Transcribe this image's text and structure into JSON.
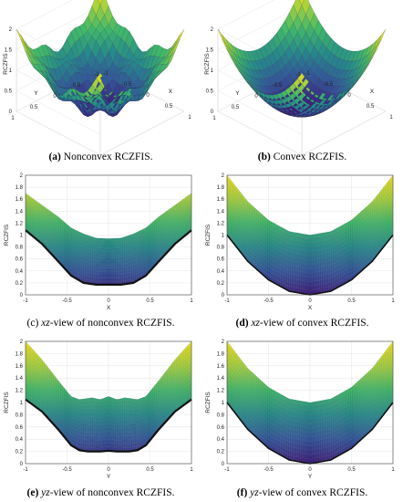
{
  "chart_data": [
    {
      "id": "a",
      "type": "surface3d",
      "caption_letter": "(a)",
      "caption_text": "Nonconvex RCZFIS.",
      "zlabel": "RCZFIS",
      "xlabel": "X",
      "ylabel": "Y",
      "zticks": [
        "0",
        "0.5",
        "1",
        "1.5",
        "2"
      ],
      "xticks": [
        "-1",
        "-0.5",
        "0",
        "0.5",
        "1"
      ],
      "yticks": [
        "1",
        "0.5",
        "0",
        "-0.5",
        "-1"
      ],
      "zlim": [
        0,
        2
      ],
      "xlim": [
        -1,
        1
      ],
      "ylim": [
        -1,
        1
      ],
      "colormap": [
        "#3e1a78",
        "#33559a",
        "#268a8c",
        "#40b86b",
        "#a6d23e",
        "#f3e11d"
      ],
      "surface": "nonconvex"
    },
    {
      "id": "b",
      "type": "surface3d",
      "caption_letter": "(b)",
      "caption_text": "Convex RCZFIS.",
      "zlabel": "RCZFIS",
      "xlabel": "X",
      "ylabel": "Y",
      "zticks": [
        "0",
        "0.5",
        "1",
        "1.5",
        "2"
      ],
      "xticks": [
        "-1",
        "-0.5",
        "0",
        "0.5",
        "1"
      ],
      "yticks": [
        "1",
        "0.5",
        "0",
        "-0.5",
        "-1"
      ],
      "zlim": [
        0,
        2
      ],
      "xlim": [
        -1,
        1
      ],
      "ylim": [
        -1,
        1
      ],
      "colormap": [
        "#3e1a78",
        "#33559a",
        "#268a8c",
        "#40b86b",
        "#a6d23e",
        "#f3e11d"
      ],
      "surface": "convex"
    },
    {
      "id": "c",
      "type": "surface_side_view",
      "caption_prefix": "(c)",
      "caption_var": "xz",
      "caption_text": "-view of nonconvex RCZFIS.",
      "ylabel": "RCZFIS",
      "xlabel": "X",
      "yticks": [
        "0",
        "0.2",
        "0.4",
        "0.6",
        "0.8",
        "1",
        "1.2",
        "1.4",
        "1.6",
        "1.8",
        "2"
      ],
      "xticks": [
        "-1",
        "-0.5",
        "0",
        "0.5",
        "1"
      ],
      "ylim": [
        0,
        2
      ],
      "xlim": [
        -1,
        1
      ],
      "lower_curve": [
        [
          -1,
          1.08
        ],
        [
          -0.8,
          0.85
        ],
        [
          -0.6,
          0.55
        ],
        [
          -0.45,
          0.32
        ],
        [
          -0.3,
          0.2
        ],
        [
          -0.15,
          0.17
        ],
        [
          0,
          0.17
        ],
        [
          0.15,
          0.17
        ],
        [
          0.3,
          0.2
        ],
        [
          0.45,
          0.32
        ],
        [
          0.6,
          0.55
        ],
        [
          0.8,
          0.85
        ],
        [
          1,
          1.08
        ]
      ],
      "upper_curve": [
        [
          -1,
          1.7
        ],
        [
          -0.8,
          1.5
        ],
        [
          -0.6,
          1.3
        ],
        [
          -0.45,
          1.12
        ],
        [
          -0.3,
          1.02
        ],
        [
          -0.15,
          0.95
        ],
        [
          0,
          0.94
        ],
        [
          0.15,
          0.95
        ],
        [
          0.3,
          1.02
        ],
        [
          0.45,
          1.12
        ],
        [
          0.6,
          1.3
        ],
        [
          0.8,
          1.5
        ],
        [
          1,
          1.7
        ]
      ],
      "colormap": [
        "#3e1a78",
        "#33559a",
        "#268a8c",
        "#40b86b",
        "#a6d23e",
        "#f3e11d"
      ],
      "view": "nonconvex"
    },
    {
      "id": "d",
      "type": "surface_side_view",
      "caption_prefix": "(d)",
      "caption_var": "xz",
      "caption_text": "-view of convex RCZFIS.",
      "ylabel": "RCZFIS",
      "xlabel": "X",
      "yticks": [
        "0",
        "0.2",
        "0.4",
        "0.6",
        "0.8",
        "1",
        "1.2",
        "1.4",
        "1.6",
        "1.8",
        "2"
      ],
      "xticks": [
        "-1",
        "-0.5",
        "0",
        "0.5",
        "1"
      ],
      "ylim": [
        0,
        2
      ],
      "xlim": [
        -1,
        1
      ],
      "lower_curve": [
        [
          -1,
          1.0
        ],
        [
          -0.75,
          0.56
        ],
        [
          -0.5,
          0.25
        ],
        [
          -0.25,
          0.06
        ],
        [
          0,
          0.0
        ],
        [
          0.25,
          0.06
        ],
        [
          0.5,
          0.25
        ],
        [
          0.75,
          0.56
        ],
        [
          1,
          1.0
        ]
      ],
      "upper_curve": [
        [
          -1,
          2.0
        ],
        [
          -0.75,
          1.56
        ],
        [
          -0.5,
          1.25
        ],
        [
          -0.25,
          1.06
        ],
        [
          0,
          1.0
        ],
        [
          0.25,
          1.06
        ],
        [
          0.5,
          1.25
        ],
        [
          0.75,
          1.56
        ],
        [
          1,
          2.0
        ]
      ],
      "colormap": [
        "#3e1a78",
        "#33559a",
        "#268a8c",
        "#40b86b",
        "#a6d23e",
        "#f3e11d"
      ],
      "view": "convex"
    },
    {
      "id": "e",
      "type": "surface_side_view",
      "caption_prefix": "(e)",
      "caption_var": "yz",
      "caption_text": "-view of nonconvex RCZFIS.",
      "ylabel": "RCZFIS",
      "xlabel": "Y",
      "yticks": [
        "0",
        "0.2",
        "0.4",
        "0.6",
        "0.8",
        "1",
        "1.2",
        "1.4",
        "1.6",
        "1.8",
        "2"
      ],
      "xticks": [
        "-1",
        "-0.5",
        "0",
        "0.5",
        "1"
      ],
      "ylim": [
        0,
        2
      ],
      "xlim": [
        -1,
        1
      ],
      "lower_curve": [
        [
          -1,
          1.05
        ],
        [
          -0.8,
          0.85
        ],
        [
          -0.6,
          0.55
        ],
        [
          -0.45,
          0.3
        ],
        [
          -0.35,
          0.22
        ],
        [
          -0.25,
          0.2
        ],
        [
          -0.1,
          0.2
        ],
        [
          0,
          0.21
        ],
        [
          0.1,
          0.2
        ],
        [
          0.25,
          0.2
        ],
        [
          0.35,
          0.22
        ],
        [
          0.45,
          0.3
        ],
        [
          0.6,
          0.55
        ],
        [
          0.8,
          0.85
        ],
        [
          1,
          1.05
        ]
      ],
      "upper_curve": [
        [
          -1,
          2.0
        ],
        [
          -0.8,
          1.7
        ],
        [
          -0.6,
          1.35
        ],
        [
          -0.45,
          1.1
        ],
        [
          -0.35,
          1.05
        ],
        [
          -0.2,
          1.08
        ],
        [
          -0.1,
          1.05
        ],
        [
          0,
          1.1
        ],
        [
          0.1,
          1.05
        ],
        [
          0.2,
          1.08
        ],
        [
          0.35,
          1.05
        ],
        [
          0.45,
          1.1
        ],
        [
          0.6,
          1.35
        ],
        [
          0.8,
          1.7
        ],
        [
          1,
          2.0
        ]
      ],
      "colormap": [
        "#3e1a78",
        "#33559a",
        "#268a8c",
        "#40b86b",
        "#a6d23e",
        "#f3e11d"
      ],
      "view": "nonconvex"
    },
    {
      "id": "f",
      "type": "surface_side_view",
      "caption_prefix": "(f)",
      "caption_var": "yz",
      "caption_text": "-view of convex RCZFIS.",
      "ylabel": "RCZFIS",
      "xlabel": "Y",
      "yticks": [
        "0",
        "0.2",
        "0.4",
        "0.6",
        "0.8",
        "1",
        "1.2",
        "1.4",
        "1.6",
        "1.8",
        "2"
      ],
      "xticks": [
        "-1",
        "-0.5",
        "0",
        "0.5",
        "1"
      ],
      "ylim": [
        0,
        2
      ],
      "xlim": [
        -1,
        1
      ],
      "lower_curve": [
        [
          -1,
          1.0
        ],
        [
          -0.75,
          0.56
        ],
        [
          -0.5,
          0.25
        ],
        [
          -0.25,
          0.06
        ],
        [
          0,
          0.0
        ],
        [
          0.25,
          0.06
        ],
        [
          0.5,
          0.25
        ],
        [
          0.75,
          0.56
        ],
        [
          1,
          1.0
        ]
      ],
      "upper_curve": [
        [
          -1,
          2.0
        ],
        [
          -0.75,
          1.56
        ],
        [
          -0.5,
          1.25
        ],
        [
          -0.25,
          1.06
        ],
        [
          0,
          1.0
        ],
        [
          0.25,
          1.06
        ],
        [
          0.5,
          1.25
        ],
        [
          0.75,
          1.56
        ],
        [
          1,
          2.0
        ]
      ],
      "colormap": [
        "#3e1a78",
        "#33559a",
        "#268a8c",
        "#40b86b",
        "#a6d23e",
        "#f3e11d"
      ],
      "view": "convex"
    }
  ]
}
